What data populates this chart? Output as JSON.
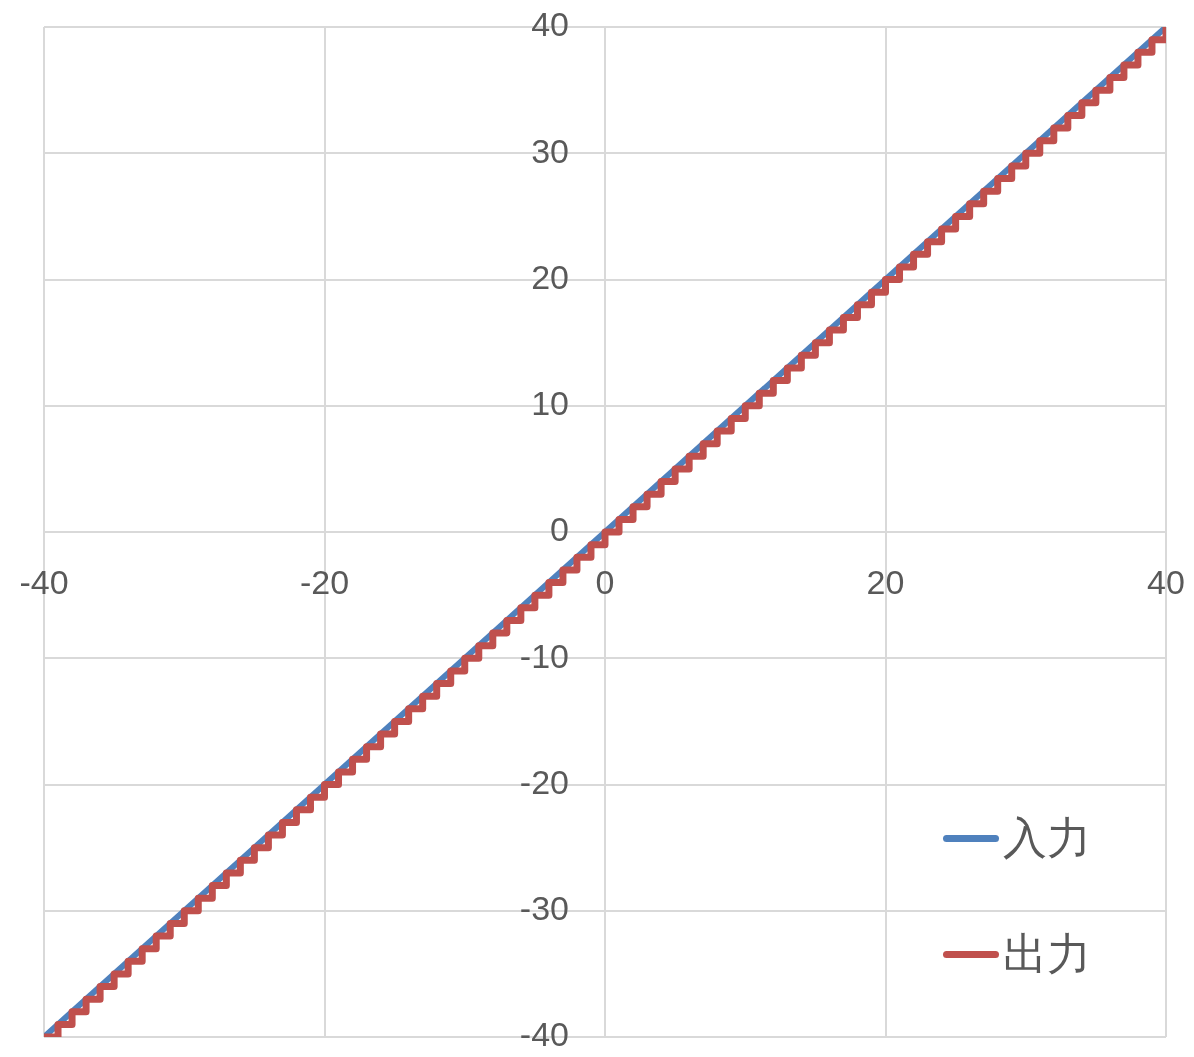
{
  "chart_data": {
    "type": "line",
    "xlim": [
      -40,
      40
    ],
    "ylim": [
      -40,
      40
    ],
    "xticks": [
      -40,
      -20,
      0,
      20,
      40
    ],
    "yticks": [
      -40,
      -30,
      -20,
      -10,
      0,
      10,
      20,
      30,
      40
    ],
    "grid": true,
    "legend": "bottom right",
    "marker": "none",
    "line_style": "solid",
    "series": [
      {
        "name": "入力",
        "color": "#4f81bd",
        "type": "line",
        "x": [
          -40,
          40
        ],
        "values": [
          -40,
          40
        ]
      },
      {
        "name": "出力",
        "color": "#c0504d",
        "type": "step",
        "x": [
          -40,
          -39,
          -38,
          -37,
          -36,
          -35,
          -34,
          -33,
          -32,
          -31,
          -30,
          -29,
          -28,
          -27,
          -26,
          -25,
          -24,
          -23,
          -22,
          -21,
          -20,
          -19,
          -18,
          -17,
          -16,
          -15,
          -14,
          -13,
          -12,
          -11,
          -10,
          -9,
          -8,
          -7,
          -6,
          -5,
          -4,
          -3,
          -2,
          -1,
          0,
          1,
          2,
          3,
          4,
          5,
          6,
          7,
          8,
          9,
          10,
          11,
          12,
          13,
          14,
          15,
          16,
          17,
          18,
          19,
          20,
          21,
          22,
          23,
          24,
          25,
          26,
          27,
          28,
          29,
          30,
          31,
          32,
          33,
          34,
          35,
          36,
          37,
          38,
          39,
          40
        ],
        "values": [
          -40,
          -39,
          -38,
          -37,
          -36,
          -35,
          -34,
          -33,
          -32,
          -31,
          -30,
          -29,
          -28,
          -27,
          -26,
          -25,
          -24,
          -23,
          -22,
          -21,
          -20,
          -19,
          -18,
          -17,
          -16,
          -15,
          -14,
          -13,
          -12,
          -11,
          -10,
          -9,
          -8,
          -7,
          -6,
          -5,
          -4,
          -3,
          -2,
          -1,
          0,
          1,
          2,
          3,
          4,
          5,
          6,
          7,
          8,
          9,
          10,
          11,
          12,
          13,
          14,
          15,
          16,
          17,
          18,
          19,
          20,
          21,
          22,
          23,
          24,
          25,
          26,
          27,
          28,
          29,
          30,
          31,
          32,
          33,
          34,
          35,
          36,
          37,
          38,
          39,
          40
        ]
      }
    ]
  }
}
